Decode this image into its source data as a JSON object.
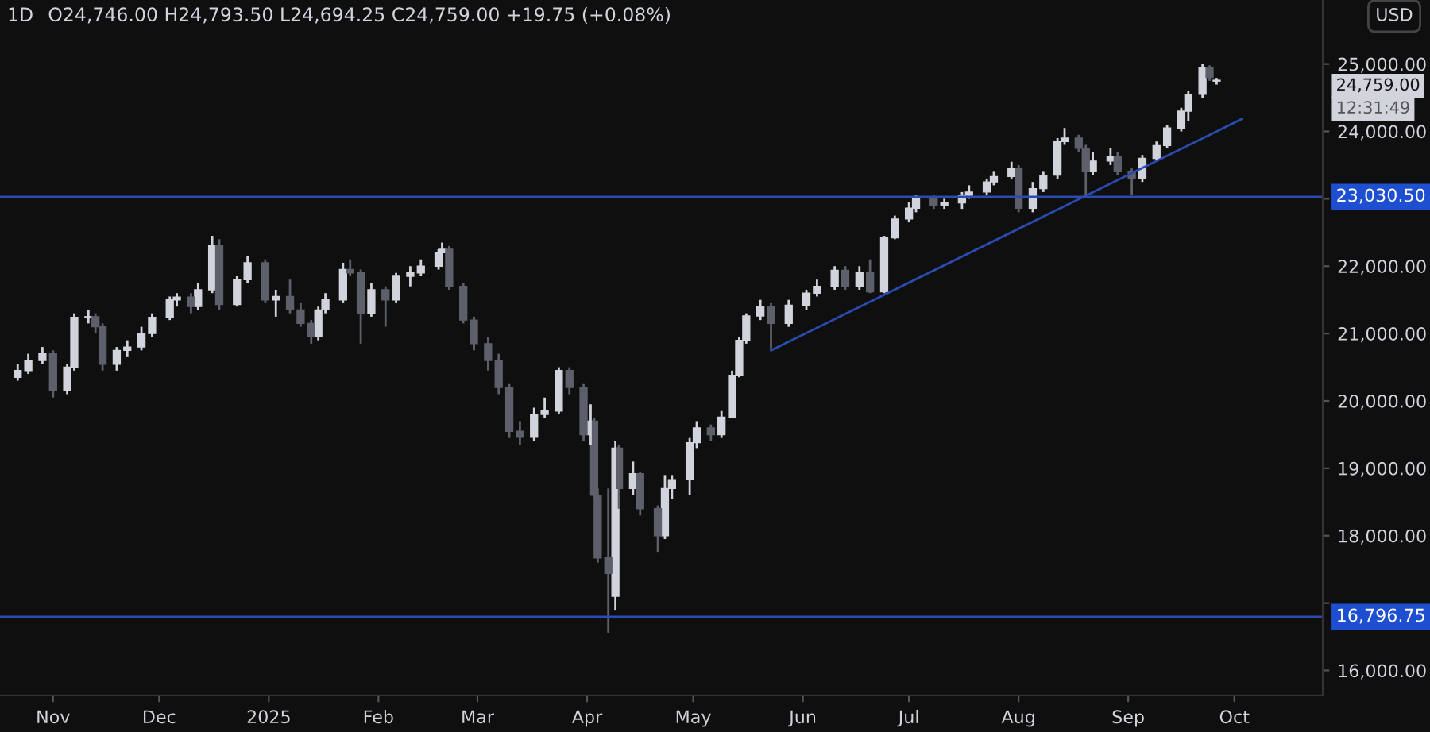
{
  "chart_data": {
    "type": "candlestick",
    "title": "1D",
    "subtitle": "O24,746.00 H24,793.50 L24,694.25 C24,759.00 +19.75 (+0.08%)",
    "xlim": [
      "2024-10-17",
      "2025-10-26"
    ],
    "xticks": [
      {
        "value": "2024-11-01",
        "label": "Nov"
      },
      {
        "value": "2024-12-01",
        "label": "Dec"
      },
      {
        "value": "2025-01-01",
        "label": "2025"
      },
      {
        "value": "2025-02-01",
        "label": "Feb"
      },
      {
        "value": "2025-03-01",
        "label": "Mar"
      },
      {
        "value": "2025-04-01",
        "label": "Apr"
      },
      {
        "value": "2025-05-01",
        "label": "May"
      },
      {
        "value": "2025-06-01",
        "label": "Jun"
      },
      {
        "value": "2025-07-01",
        "label": "Jul"
      },
      {
        "value": "2025-08-01",
        "label": "Aug"
      },
      {
        "value": "2025-09-01",
        "label": "Sep"
      },
      {
        "value": "2025-10-01",
        "label": "Oct"
      }
    ],
    "ylim": [
      15630,
      25950
    ],
    "yticks": [
      {
        "value": 16000,
        "label": "16,000.00"
      },
      {
        "value": 17000,
        "label": null
      },
      {
        "value": 18000,
        "label": "18,000.00"
      },
      {
        "value": 19000,
        "label": "19,000.00"
      },
      {
        "value": 20000,
        "label": "20,000.00"
      },
      {
        "value": 21000,
        "label": "21,000.00"
      },
      {
        "value": 22000,
        "label": "22,000.00"
      },
      {
        "value": 23000,
        "label": null
      },
      {
        "value": 24000,
        "label": "24,000.00"
      },
      {
        "value": 25000,
        "label": "25,000.00"
      }
    ],
    "grid": false,
    "legend": false,
    "series": [
      {
        "color": "#d1d4dc",
        "x": [
          "2024-10-22",
          "2024-10-25",
          "2024-10-29",
          "2024-11-05",
          "2024-11-07",
          "2024-11-11",
          "2024-11-19",
          "2024-11-22",
          "2024-11-26",
          "2024-11-29",
          "2024-12-04",
          "2024-12-06",
          "2024-12-12",
          "2024-12-16",
          "2024-12-23",
          "2024-12-26",
          "2025-01-03",
          "2025-01-15",
          "2025-01-17",
          "2025-01-22",
          "2025-01-30",
          "2025-02-06",
          "2025-02-10",
          "2025-02-13",
          "2025-02-18",
          "2025-02-19",
          "2025-03-17",
          "2025-03-20",
          "2025-03-24",
          "2025-04-02",
          "2025-04-09",
          "2025-04-14",
          "2025-04-23",
          "2025-04-25",
          "2025-04-30",
          "2025-05-02",
          "2025-05-09",
          "2025-05-12",
          "2025-05-14",
          "2025-05-16",
          "2025-05-20",
          "2025-05-28",
          "2025-06-02",
          "2025-06-05",
          "2025-06-10",
          "2025-06-17",
          "2025-06-24",
          "2025-06-27",
          "2025-07-01",
          "2025-07-03",
          "2025-07-11",
          "2025-07-16",
          "2025-07-18",
          "2025-07-23",
          "2025-07-25",
          "2025-07-30",
          "2025-08-05",
          "2025-08-08",
          "2025-08-12",
          "2025-08-14",
          "2025-08-22",
          "2025-08-27",
          "2025-09-05",
          "2025-09-09",
          "2025-09-12",
          "2025-09-16",
          "2025-09-18",
          "2025-09-22",
          "2025-09-26"
        ],
        "ohlc": [
          [
            20350,
            20550,
            20300,
            20450
          ],
          [
            20450,
            20700,
            20400,
            20600
          ],
          [
            20600,
            20800,
            20550,
            20700
          ],
          [
            20150,
            20550,
            20100,
            20500
          ],
          [
            20500,
            21300,
            20450,
            21240
          ],
          [
            21240,
            21350,
            21150,
            21250
          ],
          [
            20545,
            20800,
            20450,
            20750
          ],
          [
            20750,
            20900,
            20650,
            20800
          ],
          [
            20800,
            21100,
            20750,
            21000
          ],
          [
            21000,
            21300,
            20950,
            21240
          ],
          [
            21240,
            21550,
            21200,
            21500
          ],
          [
            21500,
            21600,
            21400,
            21540
          ],
          [
            21400,
            21750,
            21350,
            21650
          ],
          [
            21650,
            22450,
            21600,
            22300
          ],
          [
            21430,
            21850,
            21400,
            21800
          ],
          [
            21800,
            22150,
            21750,
            22050
          ],
          [
            21500,
            21650,
            21250,
            21550
          ],
          [
            20950,
            21400,
            20900,
            21350
          ],
          [
            21350,
            21600,
            21300,
            21500
          ],
          [
            21500,
            22050,
            21450,
            21950
          ],
          [
            21300,
            21750,
            21250,
            21650
          ],
          [
            21500,
            21900,
            21450,
            21850
          ],
          [
            21850,
            22000,
            21700,
            21900
          ],
          [
            21900,
            22100,
            21850,
            22000
          ],
          [
            22000,
            22250,
            21950,
            22200
          ],
          [
            22200,
            22350,
            22150,
            22250
          ],
          [
            19460,
            19900,
            19400,
            19800
          ],
          [
            19800,
            20050,
            19750,
            19850
          ],
          [
            19850,
            20500,
            19800,
            20450
          ],
          [
            19500,
            19950,
            19350,
            19700
          ],
          [
            17100,
            19400,
            16900,
            19300
          ],
          [
            18700,
            19100,
            18600,
            18920
          ],
          [
            18000,
            18900,
            17950,
            18700
          ],
          [
            18700,
            18900,
            18550,
            18830
          ],
          [
            18830,
            19450,
            18600,
            19380
          ],
          [
            19380,
            19700,
            19300,
            19600
          ],
          [
            19500,
            19850,
            19450,
            19760
          ],
          [
            19760,
            20450,
            19750,
            20380
          ],
          [
            20380,
            20950,
            20350,
            20900
          ],
          [
            20900,
            21300,
            20850,
            21260
          ],
          [
            21260,
            21500,
            21200,
            21400
          ],
          [
            21150,
            21500,
            21100,
            21420
          ],
          [
            21420,
            21650,
            21350,
            21600
          ],
          [
            21600,
            21800,
            21550,
            21700
          ],
          [
            21700,
            22000,
            21650,
            21940
          ],
          [
            21700,
            22000,
            21650,
            21900
          ],
          [
            21620,
            22450,
            21600,
            22420
          ],
          [
            22420,
            22750,
            22400,
            22700
          ],
          [
            22700,
            22950,
            22650,
            22860
          ],
          [
            22860,
            23050,
            22800,
            23000
          ],
          [
            22900,
            23000,
            22850,
            22940
          ],
          [
            22940,
            23100,
            22850,
            23050
          ],
          [
            23050,
            23200,
            23000,
            23100
          ],
          [
            23100,
            23300,
            23050,
            23250
          ],
          [
            23250,
            23400,
            23200,
            23330
          ],
          [
            23330,
            23550,
            23300,
            23450
          ],
          [
            22860,
            23250,
            22800,
            23150
          ],
          [
            23150,
            23400,
            23100,
            23350
          ],
          [
            23350,
            23900,
            23300,
            23850
          ],
          [
            23850,
            24050,
            23800,
            23900
          ],
          [
            23400,
            23700,
            23350,
            23560
          ],
          [
            23560,
            23750,
            23500,
            23630
          ],
          [
            23300,
            23650,
            23250,
            23600
          ],
          [
            23600,
            23850,
            23550,
            23790
          ],
          [
            23790,
            24100,
            23750,
            24050
          ],
          [
            24050,
            24350,
            24000,
            24300
          ],
          [
            24300,
            24600,
            24150,
            24550
          ],
          [
            24550,
            25000,
            24500,
            24950
          ],
          [
            24746,
            24793.5,
            24694.25,
            24759
          ]
        ]
      },
      {
        "color": "#5d606b",
        "x": [
          "2024-11-01",
          "2024-11-13",
          "2024-11-15",
          "2024-12-10",
          "2024-12-18",
          "2024-12-31",
          "2025-01-07",
          "2025-01-10",
          "2025-01-13",
          "2025-01-24",
          "2025-01-27",
          "2025-02-03",
          "2025-02-21",
          "2025-02-25",
          "2025-02-28",
          "2025-03-04",
          "2025-03-07",
          "2025-03-10",
          "2025-03-13",
          "2025-03-27",
          "2025-03-31",
          "2025-04-03",
          "2025-04-04",
          "2025-04-07",
          "2025-04-10",
          "2025-04-16",
          "2025-04-21",
          "2025-05-06",
          "2025-05-23",
          "2025-06-13",
          "2025-06-20",
          "2025-07-08",
          "2025-08-01",
          "2025-08-18",
          "2025-08-20",
          "2025-08-29",
          "2025-09-02",
          "2025-09-24"
        ],
        "ohlc": [
          [
            20700,
            20750,
            20050,
            20150
          ],
          [
            21250,
            21300,
            21000,
            21100
          ],
          [
            21100,
            21150,
            20450,
            20545
          ],
          [
            21540,
            21600,
            21300,
            21400
          ],
          [
            22300,
            22400,
            21350,
            21430
          ],
          [
            22050,
            22100,
            21450,
            21500
          ],
          [
            21550,
            21800,
            21300,
            21350
          ],
          [
            21350,
            21450,
            21100,
            21150
          ],
          [
            21150,
            21200,
            20850,
            20950
          ],
          [
            21950,
            22100,
            21850,
            21900
          ],
          [
            21900,
            21950,
            20850,
            21300
          ],
          [
            21650,
            21700,
            21100,
            21500
          ],
          [
            22250,
            22300,
            21650,
            21700
          ],
          [
            21700,
            21750,
            21150,
            21200
          ],
          [
            21200,
            21250,
            20750,
            20850
          ],
          [
            20850,
            20950,
            20450,
            20600
          ],
          [
            20600,
            20700,
            20100,
            20200
          ],
          [
            20200,
            20250,
            19450,
            19550
          ],
          [
            19550,
            19700,
            19350,
            19460
          ],
          [
            20450,
            20500,
            20100,
            20200
          ],
          [
            20200,
            20250,
            19400,
            19500
          ],
          [
            19700,
            19750,
            18550,
            18600
          ],
          [
            18600,
            18700,
            17600,
            17670
          ],
          [
            17670,
            18700,
            16560,
            17440
          ],
          [
            19300,
            19350,
            18400,
            18700
          ],
          [
            18920,
            18950,
            18300,
            18400
          ],
          [
            18400,
            18450,
            17760,
            18000
          ],
          [
            19600,
            19650,
            19400,
            19500
          ],
          [
            21400,
            21450,
            20780,
            21150
          ],
          [
            21940,
            22000,
            21650,
            21700
          ],
          [
            21900,
            22100,
            21600,
            21620
          ],
          [
            23000,
            23050,
            22850,
            22900
          ],
          [
            23450,
            23500,
            22800,
            22860
          ],
          [
            23900,
            23950,
            23700,
            23750
          ],
          [
            23750,
            23800,
            23030.5,
            23400
          ],
          [
            23630,
            23700,
            23350,
            23400
          ],
          [
            23400,
            23450,
            23050,
            23300
          ],
          [
            24950,
            24980,
            24750,
            24800
          ]
        ]
      },
      {
        "type": "line",
        "color": "#2a4bb0",
        "x": [
          "2025-05-23",
          "2025-10-03"
        ],
        "values": [
          20750,
          24180
        ]
      }
    ],
    "ref_lines": [
      {
        "axis": "y",
        "value": 23030.5,
        "label": "23,030.50",
        "color": "#2a4bb0"
      },
      {
        "axis": "y",
        "value": 16796.75,
        "label": "16,796.75",
        "color": "#2a4bb0"
      }
    ],
    "annotations": [
      "24,759.00",
      "12:31:49",
      "USD"
    ]
  }
}
